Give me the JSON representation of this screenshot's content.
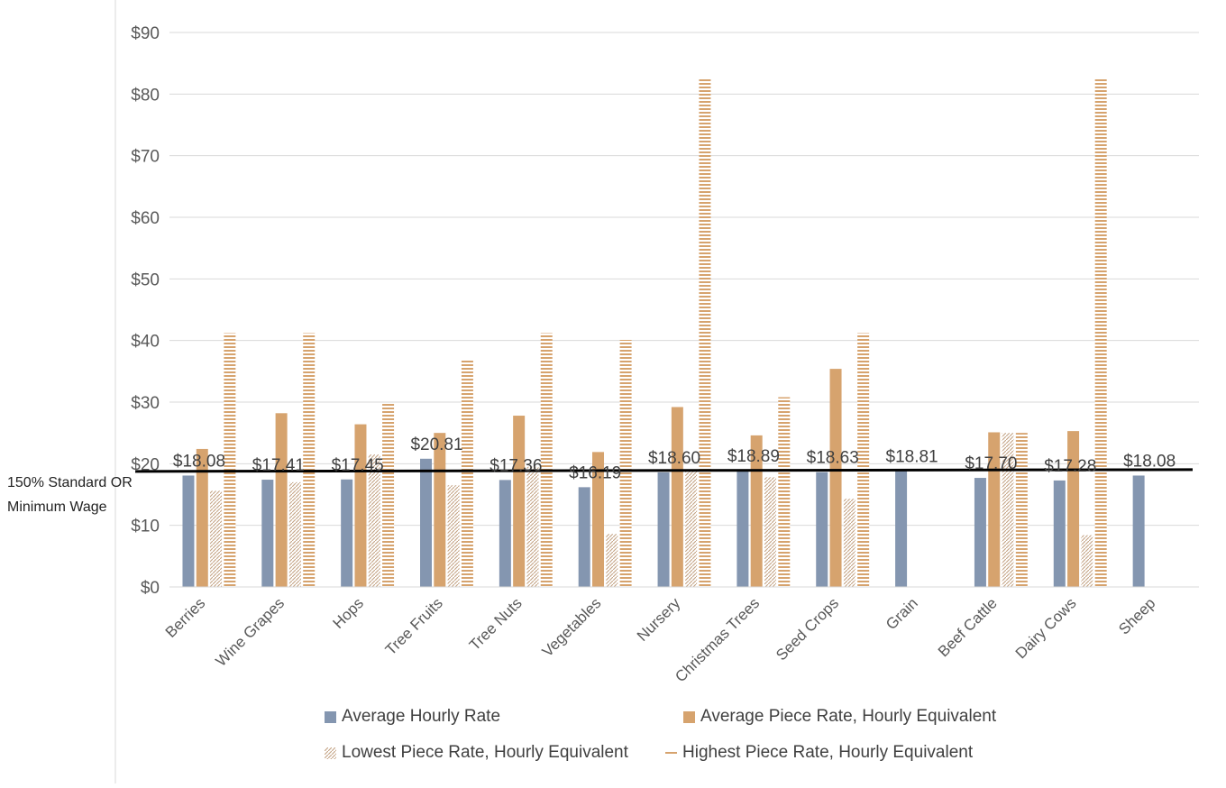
{
  "chart_data": {
    "type": "bar",
    "categories": [
      "Berries",
      "Wine Grapes",
      "Hops",
      "Tree Fruits",
      "Tree Nuts",
      "Vegetables",
      "Nursery",
      "Christmas Trees",
      "Seed Crops",
      "Grain",
      "Beef Cattle",
      "Dairy Cows",
      "Sheep"
    ],
    "series": [
      {
        "name": "Average Hourly Rate",
        "values": [
          18.08,
          17.41,
          17.45,
          20.81,
          17.36,
          16.19,
          18.6,
          18.89,
          18.63,
          18.81,
          17.7,
          17.28,
          18.08
        ],
        "data_labels": [
          "$18.08",
          "$17.41",
          "$17.45",
          "$20.81",
          "$17.36",
          "$16.19",
          "$18.60",
          "$18.89",
          "$18.63",
          "$18.81",
          "$17.70",
          "$17.28",
          "$18.08"
        ],
        "color": "#8496b0",
        "pattern": "solid"
      },
      {
        "name": "Average Piece Rate, Hourly Equivalent",
        "values": [
          22.4,
          28.2,
          26.4,
          25.0,
          27.8,
          21.9,
          29.2,
          24.6,
          35.4,
          null,
          25.1,
          25.3,
          null
        ],
        "color": "#d6a36e",
        "pattern": "solid"
      },
      {
        "name": "Lowest Piece Rate, Hourly Equivalent",
        "values": [
          15.6,
          17.0,
          21.5,
          16.5,
          19.5,
          8.6,
          19.0,
          17.8,
          14.3,
          null,
          25.0,
          8.4,
          null
        ],
        "color": "#c9a27e",
        "pattern": "diagonal-dots"
      },
      {
        "name": "Highest Piece Rate, Hourly Equivalent",
        "values": [
          41.2,
          41.2,
          29.8,
          36.8,
          41.2,
          40.1,
          82.4,
          30.8,
          41.2,
          null,
          25.0,
          82.4,
          null
        ],
        "color": "#d6a36e",
        "pattern": "horizontal-lines"
      }
    ],
    "reference_line": {
      "label": "150% Standard OR Minimum Wage",
      "value": 18.9
    },
    "y_ticks": [
      "$0",
      "$10",
      "$20",
      "$30",
      "$40",
      "$50",
      "$60",
      "$70",
      "$80",
      "$90"
    ],
    "ylim": [
      0,
      90
    ],
    "grid": true,
    "legend_position": "bottom"
  }
}
